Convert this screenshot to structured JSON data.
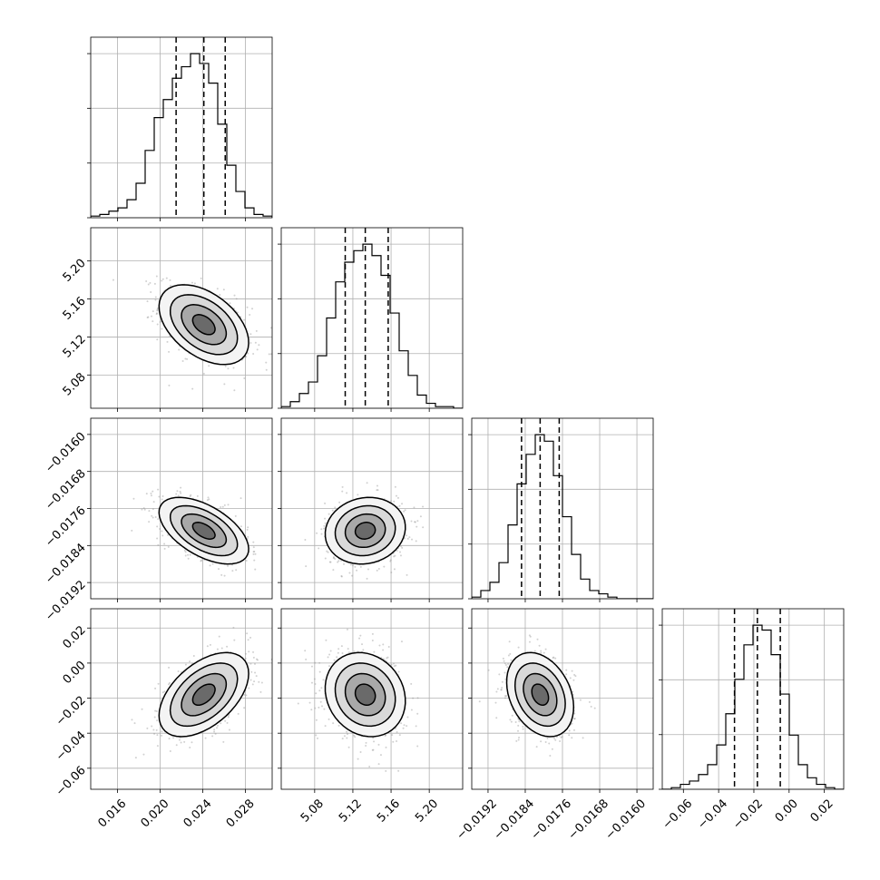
{
  "chart_data": {
    "type": "corner",
    "grid": true,
    "parameters": [
      {
        "range": [
          0.0135,
          0.0305
        ],
        "ticks": [
          0.016,
          0.02,
          0.024,
          0.028
        ],
        "tick_labels": [
          "0.016",
          "0.020",
          "0.024",
          "0.028"
        ],
        "mean": 0.0241,
        "sd": 0.0021,
        "quantiles": [
          0.0215,
          0.0241,
          0.0261
        ],
        "hist": [
          0.01,
          0.02,
          0.04,
          0.06,
          0.11,
          0.21,
          0.41,
          0.61,
          0.72,
          0.85,
          0.92,
          1.0,
          0.94,
          0.82,
          0.57,
          0.32,
          0.16,
          0.06,
          0.02,
          0.01
        ],
        "hist_max_label": "",
        "hist_yticks": [
          0.0,
          0.333,
          0.667,
          1.0
        ]
      },
      {
        "range": [
          5.045,
          5.235
        ],
        "ticks": [
          5.08,
          5.12,
          5.16,
          5.2
        ],
        "tick_labels": [
          "5.08",
          "5.12",
          "5.16",
          "5.20"
        ],
        "mean": 5.133,
        "sd": 0.021,
        "quantiles": [
          5.112,
          5.133,
          5.157
        ],
        "hist": [
          0.01,
          0.04,
          0.09,
          0.16,
          0.32,
          0.55,
          0.77,
          0.89,
          0.96,
          1.0,
          0.93,
          0.81,
          0.58,
          0.35,
          0.2,
          0.08,
          0.03,
          0.01,
          0.01,
          0.0
        ],
        "hist_yticks": [
          0.0,
          0.333,
          0.667,
          1.0
        ]
      },
      {
        "range": [
          -0.01955,
          -0.01565
        ],
        "ticks": [
          -0.0192,
          -0.0184,
          -0.0176,
          -0.0168,
          -0.016
        ],
        "tick_labels": [
          "−0.0192",
          "−0.0184",
          "−0.0176",
          "−0.0168",
          "−0.0160"
        ],
        "mean": -0.01808,
        "sd": 0.00036,
        "quantiles": [
          -0.01848,
          -0.01808,
          -0.01767
        ],
        "hist": [
          0.01,
          0.05,
          0.1,
          0.22,
          0.45,
          0.7,
          0.88,
          1.0,
          0.96,
          0.75,
          0.5,
          0.27,
          0.12,
          0.05,
          0.03,
          0.01,
          0.0,
          0.0,
          0.0,
          0.0
        ],
        "hist_yticks": [
          0.0,
          0.333,
          0.667,
          1.0
        ]
      },
      {
        "range": [
          -0.072,
          0.031
        ],
        "ticks": [
          -0.06,
          -0.04,
          -0.02,
          0.0,
          0.02
        ],
        "tick_labels": [
          "−0.06",
          "−0.04",
          "−0.02",
          "0.00",
          "0.02"
        ],
        "mean": -0.018,
        "sd": 0.012,
        "quantiles": [
          -0.031,
          -0.018,
          -0.005
        ],
        "hist": [
          0.0,
          0.01,
          0.03,
          0.05,
          0.09,
          0.15,
          0.27,
          0.46,
          0.67,
          0.88,
          1.0,
          0.97,
          0.82,
          0.58,
          0.33,
          0.15,
          0.07,
          0.03,
          0.01,
          0.0
        ],
        "hist_yticks": [
          0.0,
          0.333,
          0.667,
          1.0
        ]
      }
    ],
    "pairs": [
      {
        "x": 0,
        "y": 1,
        "rho": -0.45
      },
      {
        "x": 0,
        "y": 2,
        "rho": -0.55
      },
      {
        "x": 1,
        "y": 2,
        "rho": 0.1
      },
      {
        "x": 0,
        "y": 3,
        "rho": 0.5
      },
      {
        "x": 1,
        "y": 3,
        "rho": -0.15
      },
      {
        "x": 2,
        "y": 3,
        "rho": -0.3
      }
    ],
    "contour_levels_sigma": [
      0.5,
      1.0,
      1.5,
      2.0
    ],
    "colors": {
      "ink": "#000000",
      "grid": "#b0b0b0",
      "scatter": "#9a9a9a"
    }
  }
}
